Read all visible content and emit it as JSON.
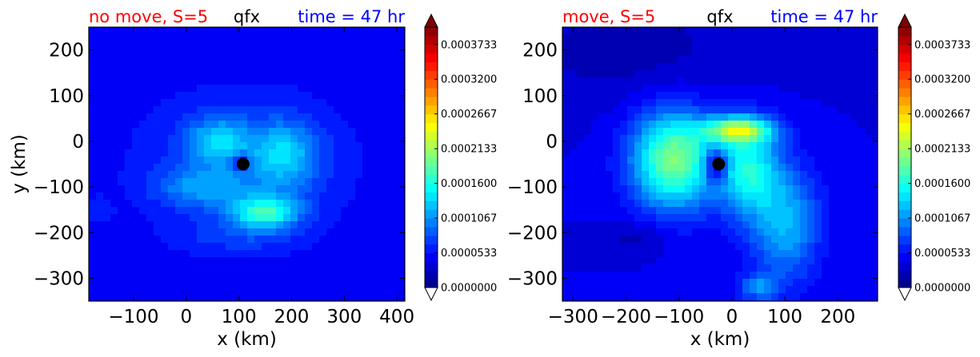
{
  "chart_data": [
    {
      "type": "heatmap",
      "title_left": "no move, S=5",
      "title_center": "qfx",
      "title_right": "time = 47 hr",
      "xlabel": "x (km)",
      "ylabel": "y (km)",
      "xlim": [
        -185,
        415
      ],
      "ylim": [
        -350,
        250
      ],
      "xticks": [
        -100,
        0,
        100,
        200,
        300,
        400
      ],
      "xtick_labels": [
        "−100",
        "0",
        "100",
        "200",
        "300",
        "400"
      ],
      "yticks": [
        200,
        100,
        0,
        -100,
        -200,
        -300
      ],
      "ytick_labels": [
        "200",
        "100",
        "0",
        "−100",
        "−200",
        "−300"
      ],
      "center_marker": [
        108,
        -50
      ],
      "background_level": 4e-05,
      "blobs": [
        {
          "x": 108,
          "y": -50,
          "sx": 160,
          "sy": 130,
          "v": 3.5e-05
        },
        {
          "x": 60,
          "y": 0,
          "sx": 40,
          "sy": 35,
          "v": 7e-05
        },
        {
          "x": 185,
          "y": -30,
          "sx": 45,
          "sy": 50,
          "v": 7e-05
        },
        {
          "x": 150,
          "y": -155,
          "sx": 45,
          "sy": 25,
          "v": 0.00011
        },
        {
          "x": 30,
          "y": -100,
          "sx": 60,
          "sy": 30,
          "v": 5e-05
        },
        {
          "x": 100,
          "y": -210,
          "sx": 80,
          "sy": 25,
          "v": 2e-05
        },
        {
          "x": 105,
          "y": -45,
          "sx": 12,
          "sy": 12,
          "v": -6e-05
        },
        {
          "x": -170,
          "y": -150,
          "sx": 20,
          "sy": 20,
          "v": 2e-05
        }
      ]
    },
    {
      "type": "heatmap",
      "title_left": "move, S=5",
      "title_center": "qfx",
      "title_right": "time = 47 hr",
      "xlabel": "x (km)",
      "ylabel": "",
      "xlim": [
        -320,
        275
      ],
      "ylim": [
        -350,
        250
      ],
      "xticks": [
        -300,
        -200,
        -100,
        0,
        100,
        200
      ],
      "xtick_labels": [
        "−300",
        "−200",
        "−100",
        "0",
        "100",
        "200"
      ],
      "yticks": [
        200,
        100,
        0,
        -100,
        -200,
        -300
      ],
      "ytick_labels": [
        "200",
        "100",
        "0",
        "−100",
        "−200",
        "−300"
      ],
      "center_marker": [
        -25,
        -50
      ],
      "background_level": 4e-05,
      "blobs": [
        {
          "x": -110,
          "y": -40,
          "sx": 55,
          "sy": 75,
          "v": 0.00016
        },
        {
          "x": 10,
          "y": 25,
          "sx": 45,
          "sy": 20,
          "v": 0.00015
        },
        {
          "x": 30,
          "y": -60,
          "sx": 40,
          "sy": 70,
          "v": 0.00011
        },
        {
          "x": 100,
          "y": -180,
          "sx": 45,
          "sy": 90,
          "v": 8e-05
        },
        {
          "x": 50,
          "y": -320,
          "sx": 25,
          "sy": 20,
          "v": 6e-05
        },
        {
          "x": -30,
          "y": -55,
          "sx": 15,
          "sy": 25,
          "v": -9e-05
        },
        {
          "x": -180,
          "y": -210,
          "sx": 40,
          "sy": 25,
          "v": -2e-05
        },
        {
          "x": -200,
          "y": 200,
          "sx": 150,
          "sy": 80,
          "v": -2e-05
        }
      ]
    }
  ],
  "colorbars": [
    {
      "tick_values": [
        0,
        5.33e-05,
        0.0001067,
        0.00016,
        0.0002133,
        0.0002667,
        0.00032,
        0.0003733
      ],
      "tick_labels": [
        "0.0000000",
        "0.0000533",
        "0.0001067",
        "0.0001600",
        "0.0002133",
        "0.0002667",
        "0.0003200",
        "0.0003733"
      ],
      "range": [
        0,
        0.0004
      ],
      "levels": 30
    },
    {
      "tick_values": [
        0,
        5.33e-05,
        0.0001067,
        0.00016,
        0.0002133,
        0.0002667,
        0.00032,
        0.0003733
      ],
      "tick_labels": [
        "0.0000000",
        "0.0000533",
        "0.0001067",
        "0.0001600",
        "0.0002133",
        "0.0002667",
        "0.0003200",
        "0.0003733"
      ],
      "range": [
        0,
        0.0004
      ],
      "levels": 30
    }
  ],
  "colors": {
    "title_left": "#ff0000",
    "title_center": "#000000",
    "title_right": "#0000ff",
    "marker": "#000000",
    "colormap": "jet"
  }
}
